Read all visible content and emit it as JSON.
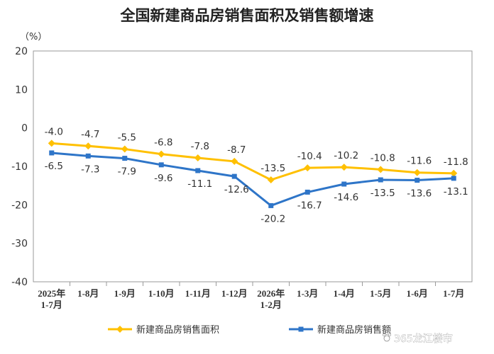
{
  "chart_data": {
    "type": "line",
    "title": "全国新建商品房销售面积及销售额增速",
    "y_unit": "（%）",
    "ylim": [
      -40,
      20
    ],
    "yticks": [
      20,
      10,
      0,
      -10,
      -20,
      -30,
      -40
    ],
    "categories": [
      [
        "2025年",
        "1-7月"
      ],
      [
        "1-8月"
      ],
      [
        "1-9月"
      ],
      [
        "1-10月"
      ],
      [
        "1-11月"
      ],
      [
        "1-12月"
      ],
      [
        "2026年",
        "1-2月"
      ],
      [
        "1-3月"
      ],
      [
        "1-4月"
      ],
      [
        "1-5月"
      ],
      [
        "1-6月"
      ],
      [
        "1-7月"
      ]
    ],
    "series": [
      {
        "name": "新建商品房销售面积",
        "color": "#FFC000",
        "marker": "diamond",
        "values": [
          -4.0,
          -4.7,
          -5.5,
          -6.8,
          -7.8,
          -8.7,
          -13.5,
          -10.4,
          -10.2,
          -10.8,
          -11.6,
          -11.8
        ],
        "labels": [
          "-4.0",
          "-4.7",
          "-5.5",
          "-6.8",
          "-7.8",
          "-8.7",
          "-13.5",
          "-10.4",
          "-10.2",
          "-10.8",
          "-11.6",
          "-11.8"
        ]
      },
      {
        "name": "新建商品房销售额",
        "color": "#2E75C8",
        "marker": "square",
        "values": [
          -6.5,
          -7.3,
          -7.9,
          -9.6,
          -11.1,
          -12.6,
          -20.2,
          -16.7,
          -14.6,
          -13.5,
          -13.6,
          -13.1
        ],
        "labels": [
          "-6.5",
          "-7.3",
          "-7.9",
          "-9.6",
          "-11.1",
          "-12.6",
          "-20.2",
          "-16.7",
          "-14.6",
          "-13.5",
          "-13.6",
          "-13.1"
        ]
      }
    ],
    "grid": false,
    "legend_position": "bottom"
  },
  "watermark": "365龙江楼市",
  "watermark_icon": "paw-icon"
}
